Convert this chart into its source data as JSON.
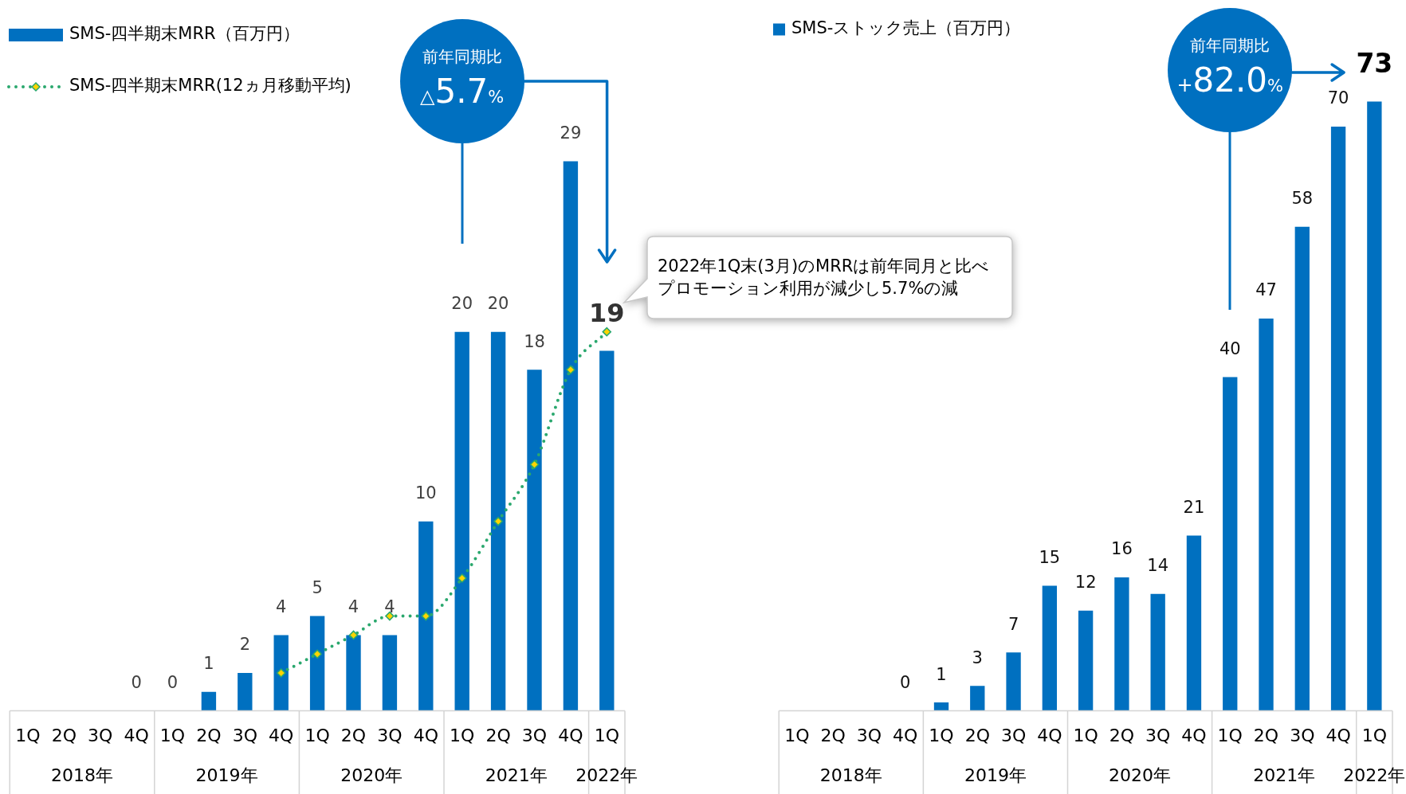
{
  "chart_data": [
    {
      "type": "bar",
      "categories": [
        "1Q",
        "2Q",
        "3Q",
        "4Q",
        "1Q",
        "2Q",
        "3Q",
        "4Q",
        "1Q",
        "2Q",
        "3Q",
        "4Q",
        "1Q",
        "2Q",
        "3Q",
        "4Q",
        "1Q"
      ],
      "series": [
        {
          "name": "SMS-四半期末MRR（百万円）",
          "color": "#0070c0",
          "values": [
            null,
            null,
            null,
            0,
            0,
            1,
            2,
            4,
            5,
            4,
            4,
            10,
            20,
            20,
            18,
            29,
            19
          ],
          "value_labels": [
            null,
            null,
            null,
            "0",
            "0",
            "1",
            "2",
            "4",
            "5",
            "4",
            "4",
            "10",
            "20",
            "20",
            "18",
            "29",
            "19"
          ]
        },
        {
          "name": "SMS-四半期末MRR(12ヵ月移動平均)",
          "type": "line",
          "color": "#2aa86e",
          "values": [
            null,
            null,
            null,
            null,
            null,
            null,
            null,
            2,
            3,
            4,
            5,
            5,
            7,
            10,
            13,
            18,
            20
          ]
        }
      ],
      "tick_labels": "x",
      "grid": false,
      "legend": "top left",
      "marker": "diamond",
      "line_style": "dotted",
      "annotations": [
        "2018年",
        "2019年",
        "2020年",
        "2021年",
        "2022年",
        "前年同期比",
        "△5.7%",
        "2022年1Q末(3月)のMRRは前年同月と比べプロモーション利用が減少し5.7%の減"
      ]
    },
    {
      "type": "bar",
      "categories": [
        "1Q",
        "2Q",
        "3Q",
        "4Q",
        "1Q",
        "2Q",
        "3Q",
        "4Q",
        "1Q",
        "2Q",
        "3Q",
        "4Q",
        "1Q",
        "2Q",
        "3Q",
        "4Q",
        "1Q"
      ],
      "series": [
        {
          "name": "SMS-ストック売上（百万円）",
          "color": "#0070c0",
          "values": [
            null,
            null,
            null,
            0,
            1,
            3,
            7,
            15,
            12,
            16,
            14,
            21,
            40,
            47,
            58,
            70,
            73
          ],
          "value_labels": [
            null,
            null,
            null,
            "0",
            "1",
            "3",
            "7",
            "15",
            "12",
            "16",
            "14",
            "21",
            "40",
            "47",
            "58",
            "70",
            "73"
          ]
        }
      ],
      "tick_labels": "x",
      "grid": false,
      "legend": "top left",
      "annotations": [
        "2018年",
        "2019年",
        "2020年",
        "2021年",
        "2022年",
        "前年同期比",
        "+82.0%"
      ]
    }
  ]
}
